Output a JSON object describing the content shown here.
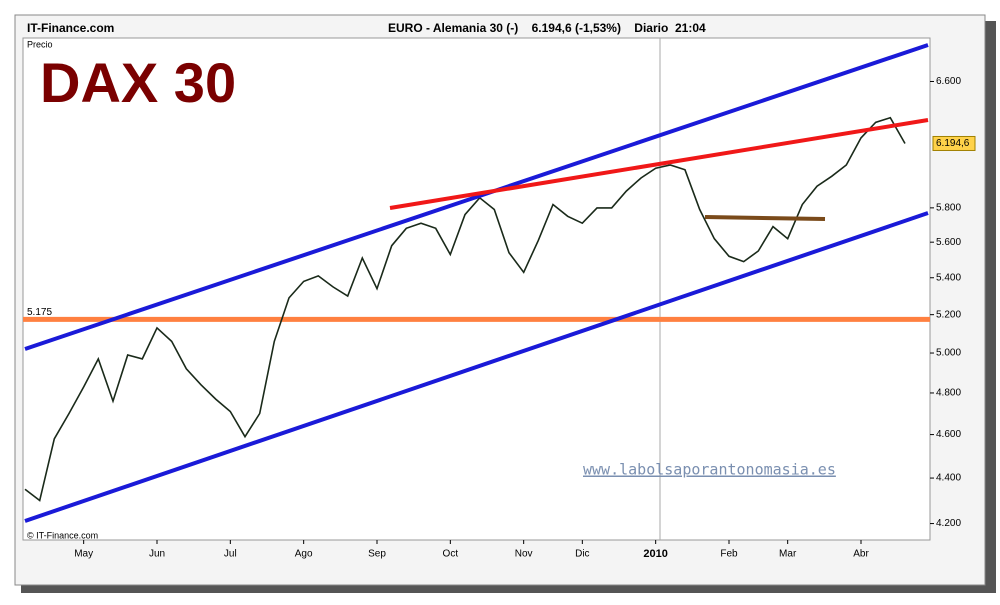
{
  "site": "IT-Finance.com",
  "chart_data": {
    "type": "line",
    "header": "EURO - Alemania 30 (-)    6.194,6 (-1,53%)    Diario  21:04",
    "title": "DAX 30",
    "y_label": "Precio",
    "watermark": "www.labolsaporantonomasia.es",
    "copyright": "© IT-Finance.com",
    "categories": [
      null,
      null,
      null,
      null,
      "May",
      null,
      null,
      null,
      null,
      "Jun",
      null,
      null,
      null,
      null,
      "Jul",
      null,
      null,
      null,
      null,
      "Ago",
      null,
      null,
      null,
      null,
      "Sep",
      null,
      null,
      null,
      null,
      "Oct",
      null,
      null,
      null,
      null,
      "Nov",
      null,
      null,
      null,
      "Dic",
      null,
      null,
      null,
      null,
      "2010",
      null,
      null,
      null,
      null,
      "Feb",
      null,
      null,
      null,
      "Mar",
      null,
      null,
      null,
      null,
      "Abr",
      null,
      null,
      null
    ],
    "series": [
      {
        "name": "DAX 30",
        "color": "#1a2a1a",
        "values": [
          4350,
          4300,
          4580,
          4700,
          4830,
          4970,
          4760,
          4990,
          4970,
          5130,
          5060,
          4920,
          4840,
          4770,
          4710,
          4590,
          4700,
          5060,
          5290,
          5380,
          5410,
          5350,
          5300,
          5510,
          5340,
          5580,
          5680,
          5710,
          5680,
          5530,
          5760,
          5860,
          5790,
          5540,
          5430,
          5610,
          5820,
          5750,
          5710,
          5800,
          5800,
          5900,
          5980,
          6040,
          6060,
          6030,
          5790,
          5620,
          5520,
          5490,
          5550,
          5690,
          5620,
          5820,
          5930,
          5990,
          6060,
          6230,
          6330,
          6360,
          6194.6
        ]
      }
    ],
    "last": {
      "value": 6194.6,
      "label": "6.194,6",
      "color": "#ffd24a"
    },
    "levels": [
      {
        "value": 5175,
        "label": "5.175",
        "color": "#ff8040"
      }
    ],
    "ylim": [
      4130,
      6900
    ],
    "log_scale": true,
    "yticks": [
      {
        "value": 4200,
        "label": "4.200"
      },
      {
        "value": 4400,
        "label": "4.400"
      },
      {
        "value": 4600,
        "label": "4.600"
      },
      {
        "value": 4800,
        "label": "4.800"
      },
      {
        "value": 5000,
        "label": "5.000"
      },
      {
        "value": 5200,
        "label": "5.200"
      },
      {
        "value": 5400,
        "label": "5.400"
      },
      {
        "value": 5600,
        "label": "5.600"
      },
      {
        "value": 5800,
        "label": "5.800"
      },
      {
        "value": 6600,
        "label": "6.600"
      }
    ]
  }
}
